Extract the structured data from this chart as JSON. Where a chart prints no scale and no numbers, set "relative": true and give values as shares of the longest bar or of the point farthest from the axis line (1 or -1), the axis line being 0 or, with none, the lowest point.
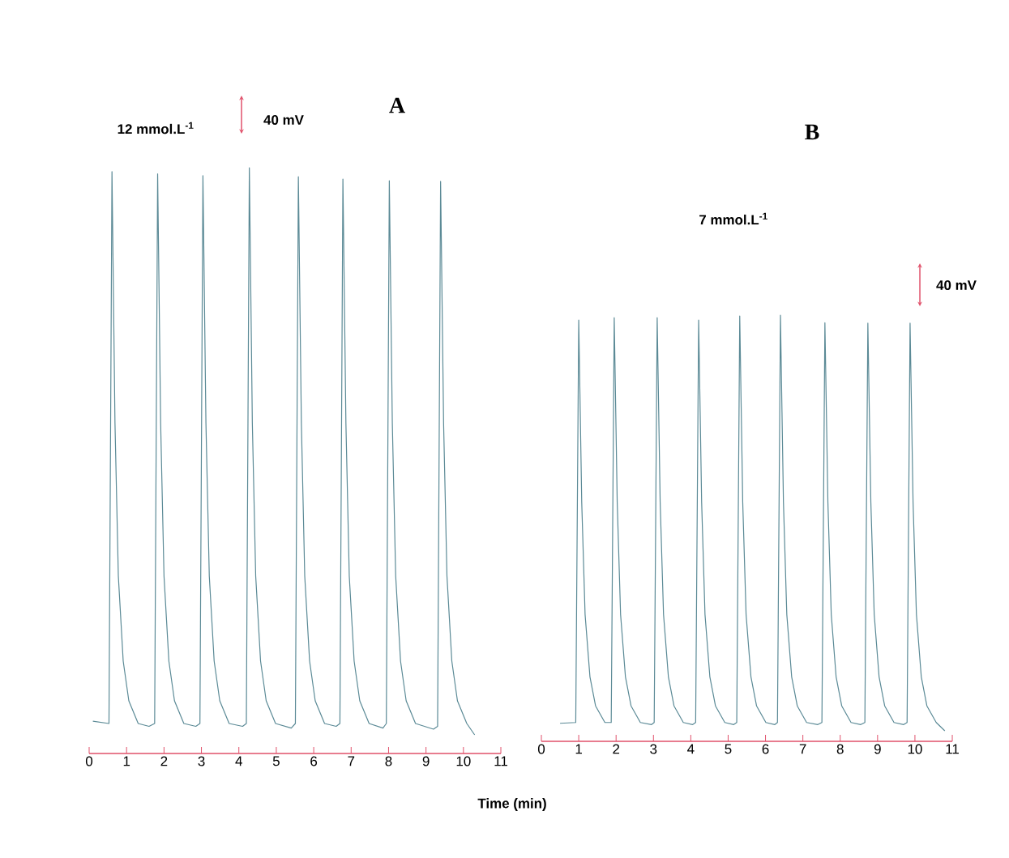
{
  "chart_data": [
    {
      "type": "line",
      "relative": true,
      "xlim": [
        0,
        11
      ],
      "xticks": [
        0,
        1,
        2,
        3,
        4,
        5,
        6,
        7,
        8,
        9,
        10,
        11
      ],
      "annotations": [
        "A",
        "12 mmol.L$^{-1}$",
        "40 mV"
      ],
      "series": [
        {
          "color": "#5b8a96",
          "x": [
            0.1,
            0.53,
            0.61,
            0.69,
            0.78,
            0.91,
            1.06,
            1.31,
            1.6,
            1.75,
            1.83,
            1.91,
            2.0,
            2.13,
            2.28,
            2.53,
            2.85,
            2.96,
            3.04,
            3.12,
            3.21,
            3.34,
            3.49,
            3.74,
            4.1,
            4.2,
            4.28,
            4.36,
            4.45,
            4.58,
            4.73,
            4.98,
            5.4,
            5.51,
            5.59,
            5.67,
            5.76,
            5.89,
            6.04,
            6.29,
            6.6,
            6.7,
            6.78,
            6.86,
            6.95,
            7.08,
            7.23,
            7.48,
            7.85,
            7.94,
            8.02,
            8.1,
            8.19,
            8.32,
            8.47,
            8.72,
            9.2,
            9.31,
            9.39,
            9.47,
            9.56,
            9.69,
            9.84,
            10.09,
            10.3
          ],
          "values": [
            0.024,
            0.02,
            0.993,
            0.55,
            0.28,
            0.13,
            0.06,
            0.02,
            0.015,
            0.02,
            0.989,
            0.55,
            0.28,
            0.13,
            0.06,
            0.02,
            0.015,
            0.02,
            0.986,
            0.55,
            0.28,
            0.13,
            0.06,
            0.02,
            0.015,
            0.02,
            1,
            0.55,
            0.28,
            0.13,
            0.06,
            0.02,
            0.012,
            0.02,
            0.984,
            0.55,
            0.28,
            0.13,
            0.06,
            0.02,
            0.015,
            0.02,
            0.98,
            0.55,
            0.28,
            0.13,
            0.06,
            0.02,
            0.012,
            0.02,
            0.977,
            0.55,
            0.28,
            0.13,
            0.06,
            0.02,
            0.01,
            0.015,
            0.976,
            0.55,
            0.28,
            0.13,
            0.06,
            0.02,
            0
          ]
        }
      ]
    },
    {
      "type": "line",
      "relative": true,
      "xlim": [
        0,
        11
      ],
      "xticks": [
        0,
        1,
        2,
        3,
        4,
        5,
        6,
        7,
        8,
        9,
        10,
        11
      ],
      "xlabel": "Time (min)",
      "annotations": [
        "B",
        "7 mmol.L$^{-1}$",
        "40 mV"
      ],
      "series": [
        {
          "color": "#5b8a96",
          "x": [
            0.5,
            0.92,
            1.0,
            1.08,
            1.17,
            1.3,
            1.45,
            1.7,
            1.87,
            1.95,
            2.03,
            2.12,
            2.25,
            2.4,
            2.65,
            2.95,
            3.02,
            3.1,
            3.18,
            3.27,
            3.4,
            3.55,
            3.8,
            4.05,
            4.13,
            4.21,
            4.29,
            4.38,
            4.51,
            4.66,
            4.91,
            5.15,
            5.23,
            5.31,
            5.39,
            5.48,
            5.61,
            5.76,
            6.01,
            6.25,
            6.32,
            6.4,
            6.48,
            6.57,
            6.7,
            6.85,
            7.1,
            7.4,
            7.51,
            7.59,
            7.67,
            7.76,
            7.89,
            8.04,
            8.29,
            8.55,
            8.66,
            8.74,
            8.82,
            8.91,
            9.04,
            9.19,
            9.44,
            9.7,
            9.79,
            9.87,
            9.95,
            10.04,
            10.17,
            10.32,
            10.57,
            10.8
          ],
          "values": [
            0.018,
            0.02,
            0.988,
            0.55,
            0.28,
            0.13,
            0.06,
            0.02,
            0.02,
            0.994,
            0.55,
            0.28,
            0.13,
            0.06,
            0.02,
            0.015,
            0.02,
            0.994,
            0.55,
            0.28,
            0.13,
            0.06,
            0.02,
            0.015,
            0.02,
            0.988,
            0.55,
            0.28,
            0.13,
            0.06,
            0.02,
            0.015,
            0.02,
            0.998,
            0.55,
            0.28,
            0.13,
            0.06,
            0.02,
            0.015,
            0.02,
            1,
            0.55,
            0.28,
            0.13,
            0.06,
            0.02,
            0.015,
            0.02,
            0.982,
            0.55,
            0.28,
            0.13,
            0.06,
            0.02,
            0.015,
            0.02,
            0.981,
            0.55,
            0.28,
            0.13,
            0.06,
            0.02,
            0.015,
            0.02,
            0.981,
            0.55,
            0.28,
            0.13,
            0.06,
            0.02,
            0
          ]
        }
      ]
    }
  ]
}
